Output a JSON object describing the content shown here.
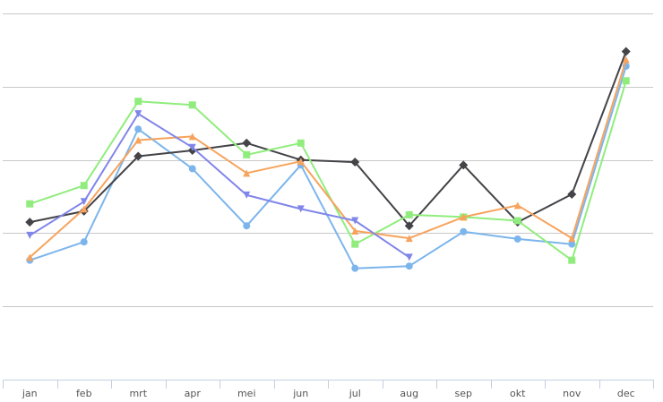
{
  "colors": {
    "background": "#ffffff",
    "gridline": "#c8c8c8",
    "axis_line": "#c0d0e0",
    "tick_label": "#555555"
  },
  "chart_data": {
    "type": "line",
    "title": "",
    "xlabel": "",
    "ylabel": "",
    "categories": [
      "jan",
      "feb",
      "mrt",
      "apr",
      "mei",
      "jun",
      "jul",
      "aug",
      "sep",
      "okt",
      "nov",
      "dec"
    ],
    "ylim": [
      0,
      5
    ],
    "y_gridlines": [
      1,
      2,
      3,
      4,
      5
    ],
    "y_tick_labels_visible": false,
    "grid": true,
    "legend": "none",
    "series": [
      {
        "color": "#7cb5ec",
        "marker": "circle",
        "values": [
          1.63,
          1.88,
          3.42,
          2.88,
          2.1,
          2.93,
          1.52,
          1.55,
          2.02,
          1.92,
          1.85,
          4.28
        ]
      },
      {
        "color": "#434348",
        "marker": "diamond",
        "values": [
          2.15,
          2.3,
          3.05,
          3.13,
          3.23,
          3.0,
          2.97,
          2.1,
          2.93,
          2.15,
          2.53,
          4.48
        ]
      },
      {
        "color": "#90ed7d",
        "marker": "square",
        "values": [
          2.4,
          2.65,
          3.8,
          3.75,
          3.07,
          3.23,
          1.85,
          2.25,
          2.22,
          2.17,
          1.63,
          4.08
        ]
      },
      {
        "color": "#f7a35c",
        "marker": "triangle",
        "values": [
          1.67,
          2.33,
          3.27,
          3.32,
          2.82,
          2.98,
          2.03,
          1.93,
          2.22,
          2.38,
          1.93,
          4.37
        ]
      },
      {
        "color": "#8085e9",
        "marker": "triangle-down",
        "values": [
          1.97,
          2.43,
          3.63,
          3.17,
          2.52,
          2.33,
          2.17,
          1.67,
          null,
          null,
          null,
          null
        ]
      }
    ]
  }
}
